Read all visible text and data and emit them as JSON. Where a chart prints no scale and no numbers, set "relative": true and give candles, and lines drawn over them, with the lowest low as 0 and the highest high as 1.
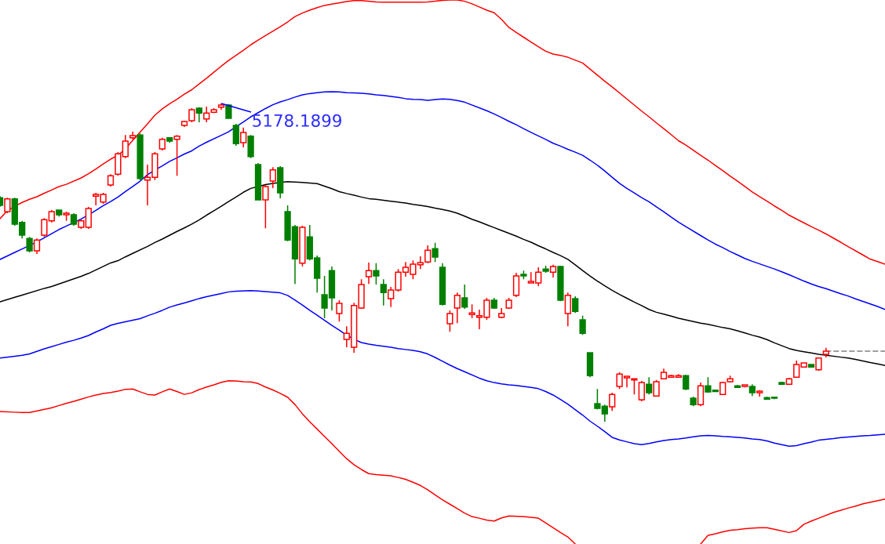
{
  "chart_data": {
    "type": "candlestick",
    "relative": true,
    "categories": [
      null,
      null,
      null,
      null,
      null,
      null,
      null,
      null,
      null,
      null,
      null,
      null,
      null,
      null,
      null,
      null,
      null,
      null,
      null,
      null,
      null,
      null,
      null,
      null,
      null,
      null,
      null,
      null,
      null,
      null,
      null,
      null,
      null,
      null,
      null,
      null,
      null,
      null,
      null,
      null,
      null,
      null,
      null,
      null,
      null,
      null,
      null,
      null,
      null,
      null,
      null,
      null,
      null,
      null,
      null,
      null,
      null,
      null,
      null,
      null,
      null,
      null,
      null,
      null,
      null,
      null,
      null,
      null,
      null,
      null,
      null,
      null,
      null,
      null,
      null,
      null,
      null,
      null,
      null,
      null,
      null,
      null,
      null,
      null,
      null,
      null,
      null,
      null,
      null,
      null,
      null,
      null,
      null,
      null,
      null,
      null,
      null,
      null,
      null,
      null,
      null,
      null,
      null,
      null,
      null,
      null,
      null,
      null,
      null,
      null,
      null,
      null,
      null,
      null,
      null,
      null,
      null,
      null,
      null,
      null,
      null
    ],
    "ohlc": [
      [
        0.704,
        0.709,
        0.675,
        0.68
      ],
      [
        0.66,
        0.704,
        0.655,
        0.7
      ],
      [
        0.7,
        0.704,
        0.616,
        0.621
      ],
      [
        0.626,
        0.631,
        0.576,
        0.586
      ],
      [
        0.576,
        0.581,
        0.532,
        0.537
      ],
      [
        0.537,
        0.576,
        0.527,
        0.571
      ],
      [
        0.586,
        0.64,
        0.581,
        0.635
      ],
      [
        0.631,
        0.665,
        0.626,
        0.66
      ],
      [
        0.665,
        0.667,
        0.645,
        0.65
      ],
      [
        0.65,
        0.66,
        0.631,
        0.655
      ],
      [
        0.65,
        0.655,
        0.616,
        0.621
      ],
      [
        0.611,
        0.635,
        0.606,
        0.631
      ],
      [
        0.611,
        0.675,
        0.606,
        0.67
      ],
      [
        0.709,
        0.719,
        0.68,
        0.714
      ],
      [
        0.69,
        0.719,
        0.685,
        0.714
      ],
      [
        0.744,
        0.778,
        0.739,
        0.773
      ],
      [
        0.778,
        0.847,
        0.773,
        0.842
      ],
      [
        0.833,
        0.901,
        0.828,
        0.882
      ],
      [
        0.892,
        0.911,
        0.887,
        0.899
      ],
      [
        0.901,
        0.906,
        0.759,
        0.764
      ],
      [
        0.759,
        0.808,
        0.68,
        0.768
      ],
      [
        0.768,
        0.847,
        0.759,
        0.842
      ],
      [
        0.857,
        0.892,
        0.852,
        0.887
      ],
      [
        0.892,
        0.894,
        0.877,
        0.882
      ],
      [
        0.887,
        0.901,
        0.773,
        0.897
      ],
      [
        0.931,
        0.946,
        0.926,
        0.943
      ],
      [
        0.946,
        0.985,
        0.941,
        0.98
      ],
      [
        0.985,
        0.988,
        0.941,
        0.97
      ],
      [
        0.951,
        0.99,
        0.941,
        0.97
      ],
      [
        0.972,
        0.985,
        0.97,
        0.98
      ],
      [
        0.988,
        1,
        0.98,
        0.995
      ],
      [
        0.995,
        0.998,
        0.951,
        0.953
      ],
      [
        0.931,
        0.936,
        0.867,
        0.874
      ],
      [
        0.877,
        0.924,
        0.862,
        0.909
      ],
      [
        0.897,
        0.901,
        0.828,
        0.833
      ],
      [
        0.808,
        0.813,
        0.695,
        0.697
      ],
      [
        0.697,
        0.744,
        0.608,
        0.739
      ],
      [
        0.756,
        0.8,
        0.734,
        0.791
      ],
      [
        0.798,
        0.803,
        0.702,
        0.719
      ],
      [
        0.66,
        0.68,
        0.567,
        0.571
      ],
      [
        0.613,
        0.618,
        0.433,
        0.512
      ],
      [
        0.498,
        0.616,
        0.488,
        0.611
      ],
      [
        0.581,
        0.618,
        0.507,
        0.512
      ],
      [
        0.515,
        0.522,
        0.406,
        0.451
      ],
      [
        0.399,
        0.458,
        0.325,
        0.357
      ],
      [
        0.475,
        0.488,
        0.35,
        0.389
      ],
      [
        0.34,
        0.382,
        0.315,
        0.372
      ],
      [
        0.259,
        0.3,
        0.234,
        0.278
      ],
      [
        0.234,
        0.374,
        0.217,
        0.365
      ],
      [
        0.357,
        0.448,
        0.355,
        0.431
      ],
      [
        0.456,
        0.5,
        0.433,
        0.475
      ],
      [
        0.475,
        0.498,
        0.431,
        0.458
      ],
      [
        0.431,
        0.448,
        0.365,
        0.406
      ],
      [
        0.387,
        0.424,
        0.36,
        0.414
      ],
      [
        0.414,
        0.48,
        0.409,
        0.47
      ],
      [
        0.47,
        0.502,
        0.456,
        0.485
      ],
      [
        0.463,
        0.507,
        0.448,
        0.495
      ],
      [
        0.493,
        0.52,
        0.48,
        0.5
      ],
      [
        0.502,
        0.554,
        0.498,
        0.539
      ],
      [
        0.544,
        0.562,
        0.502,
        0.517
      ],
      [
        0.485,
        0.498,
        0.365,
        0.369
      ],
      [
        0.308,
        0.35,
        0.283,
        0.34
      ],
      [
        0.357,
        0.406,
        0.31,
        0.397
      ],
      [
        0.389,
        0.431,
        0.355,
        0.36
      ],
      [
        0.337,
        0.369,
        0.325,
        0.342
      ],
      [
        0.328,
        0.352,
        0.291,
        0.333
      ],
      [
        0.328,
        0.389,
        0.32,
        0.382
      ],
      [
        0.382,
        0.389,
        0.355,
        0.357
      ],
      [
        0.328,
        0.357,
        0.325,
        0.34
      ],
      [
        0.357,
        0.389,
        0.355,
        0.382
      ],
      [
        0.397,
        0.468,
        0.392,
        0.458
      ],
      [
        0.463,
        0.475,
        0.448,
        0.458
      ],
      [
        0.436,
        0.47,
        0.436,
        0.441
      ],
      [
        0.436,
        0.485,
        0.426,
        0.47
      ],
      [
        0.48,
        0.49,
        0.468,
        0.473
      ],
      [
        0.47,
        0.493,
        0.453,
        0.488
      ],
      [
        0.488,
        0.49,
        0.379,
        0.382
      ],
      [
        0.34,
        0.406,
        0.3,
        0.397
      ],
      [
        0.387,
        0.394,
        0.342,
        0.347
      ],
      [
        0.32,
        0.333,
        0.273,
        0.278
      ],
      [
        0.217,
        0.219,
        0.14,
        0.145
      ],
      [
        0.057,
        0.103,
        0.039,
        0.042
      ],
      [
        0.049,
        0.054,
        0,
        0.025
      ],
      [
        0.047,
        0.091,
        0.034,
        0.086
      ],
      [
        0.111,
        0.155,
        0.103,
        0.15
      ],
      [
        0.138,
        0.145,
        0.108,
        0.143
      ],
      [
        0.131,
        0.135,
        0.086,
        0.135
      ],
      [
        0.069,
        0.128,
        0.064,
        0.123
      ],
      [
        0.118,
        0.14,
        0.086,
        0.091
      ],
      [
        0.081,
        0.131,
        0.079,
        0.126
      ],
      [
        0.135,
        0.167,
        0.133,
        0.155
      ],
      [
        0.14,
        0.148,
        0.138,
        0.145
      ],
      [
        0.14,
        0.15,
        0.138,
        0.145
      ],
      [
        0.145,
        0.148,
        0.099,
        0.103
      ],
      [
        0.074,
        0.079,
        0.049,
        0.054
      ],
      [
        0.054,
        0.123,
        0.049,
        0.113
      ],
      [
        0.113,
        0.14,
        0.091,
        0.094
      ],
      [
        0.099,
        0.101,
        0.094,
        0.095
      ],
      [
        0.086,
        0.126,
        0.084,
        0.123
      ],
      [
        0.126,
        0.145,
        0.123,
        0.135
      ],
      [
        0.113,
        0.116,
        0.106,
        0.108
      ],
      [
        0.111,
        0.118,
        0.108,
        0.116
      ],
      [
        0.111,
        0.118,
        0.081,
        0.091
      ],
      [
        0.091,
        0.099,
        0.079,
        0.096
      ],
      [
        0.076,
        0.079,
        0.069,
        0.071
      ],
      [
        0.077,
        0.079,
        0.071,
        0.074
      ],
      [
        0.123,
        0.126,
        0.116,
        0.118
      ],
      [
        0.118,
        0.138,
        0.116,
        0.135
      ],
      [
        0.14,
        0.192,
        0.138,
        0.18
      ],
      [
        0.172,
        0.187,
        0.17,
        0.185
      ],
      [
        0.18,
        0.182,
        0.17,
        0.172
      ],
      [
        0.163,
        0.202,
        0.16,
        0.2
      ],
      [
        0.212,
        0.232,
        0.202,
        0.222
      ],
      null,
      null,
      null,
      null,
      null,
      null,
      null,
      null
    ],
    "colors": [
      "#008000",
      "#ff0000",
      "#008000",
      "#008000",
      "#008000",
      "#ff0000",
      "#ff0000",
      "#ff0000",
      "#008000",
      "#ff0000",
      "#008000",
      "#ff0000",
      "#ff0000",
      "#ff0000",
      "#ff0000",
      "#ff0000",
      "#ff0000",
      "#ff0000",
      "#ff0000",
      "#008000",
      "#ff0000",
      "#ff0000",
      "#ff0000",
      "#008000",
      "#ff0000",
      "#ff0000",
      "#ff0000",
      "#008000",
      "#ff0000",
      "#ff0000",
      "#ff0000",
      "#008000",
      "#008000",
      "#ff0000",
      "#008000",
      "#008000",
      "#ff0000",
      "#ff0000",
      "#008000",
      "#008000",
      "#008000",
      "#ff0000",
      "#008000",
      "#008000",
      "#008000",
      "#008000",
      "#ff0000",
      "#ff0000",
      "#ff0000",
      "#ff0000",
      "#ff0000",
      "#008000",
      "#008000",
      "#ff0000",
      "#ff0000",
      "#ff0000",
      "#ff0000",
      "#ff0000",
      "#ff0000",
      "#008000",
      "#008000",
      "#ff0000",
      "#ff0000",
      "#008000",
      "#ff0000",
      "#ff0000",
      "#ff0000",
      "#008000",
      "#ff0000",
      "#ff0000",
      "#ff0000",
      "#008000",
      "#ff0000",
      "#ff0000",
      "#008000",
      "#ff0000",
      "#008000",
      "#ff0000",
      "#008000",
      "#008000",
      "#008000",
      "#008000",
      "#008000",
      "#ff0000",
      "#ff0000",
      "#ff0000",
      "#ff0000",
      "#ff0000",
      "#008000",
      "#ff0000",
      "#ff0000",
      "#ff0000",
      "#ff0000",
      "#008000",
      "#008000",
      "#ff0000",
      "#008000",
      "#008000",
      "#ff0000",
      "#ff0000",
      "#008000",
      "#ff0000",
      "#008000",
      "#ff0000",
      "#008000",
      "#008000",
      "#008000",
      "#ff0000",
      "#ff0000",
      "#ff0000",
      "#008000",
      "#ff0000",
      "#ff0000",
      null,
      null,
      null,
      null,
      null,
      null,
      null,
      null
    ],
    "series": [
      {
        "type": "line",
        "color": "#ff0000",
        "values": [
          0.638,
          0.663,
          0.677,
          0.689,
          0.699,
          0.707,
          0.718,
          0.728,
          0.739,
          0.746,
          0.756,
          0.766,
          0.779,
          0.794,
          0.81,
          0.825,
          0.837,
          0.857,
          0.884,
          0.91,
          0.936,
          0.963,
          0.983,
          0.999,
          1.013,
          1.029,
          1.043,
          1.061,
          1.079,
          1.098,
          1.117,
          1.135,
          1.151,
          1.167,
          1.184,
          1.199,
          1.213,
          1.227,
          1.241,
          1.256,
          1.273,
          1.284,
          1.293,
          1.301,
          1.308,
          1.312,
          1.316,
          1.32,
          1.323,
          1.323,
          1.321,
          1.319,
          1.318,
          1.318,
          1.318,
          1.318,
          1.318,
          1.318,
          1.319,
          1.321,
          1.324,
          1.325,
          1.325,
          1.321,
          1.313,
          1.303,
          1.293,
          1.285,
          1.264,
          1.239,
          1.223,
          1.208,
          1.193,
          1.178,
          1.164,
          1.155,
          1.151,
          1.145,
          1.136,
          1.127,
          1.108,
          1.089,
          1.07,
          1.052,
          1.033,
          1.014,
          0.995,
          0.976,
          0.958,
          0.939,
          0.921,
          0.902,
          0.883,
          0.869,
          0.853,
          0.837,
          0.822,
          0.805,
          0.789,
          0.772,
          0.756,
          0.739,
          0.722,
          0.707,
          0.693,
          0.678,
          0.664,
          0.649,
          0.637,
          0.625,
          0.613,
          0.602,
          0.59,
          0.577,
          0.564,
          0.55,
          0.537,
          0.524,
          0.511,
          0.503,
          0.495
        ]
      },
      {
        "type": "line",
        "color": "#0000ff",
        "values": [
          0.51,
          0.521,
          0.532,
          0.543,
          0.554,
          0.565,
          0.578,
          0.591,
          0.604,
          0.615,
          0.626,
          0.637,
          0.65,
          0.664,
          0.679,
          0.692,
          0.706,
          0.723,
          0.739,
          0.756,
          0.776,
          0.791,
          0.804,
          0.818,
          0.829,
          0.841,
          0.851,
          0.866,
          0.878,
          0.889,
          0.9,
          0.911,
          0.927,
          0.942,
          0.958,
          0.971,
          0.984,
          0.996,
          1.005,
          1.012,
          1.02,
          1.027,
          1.031,
          1.034,
          1.036,
          1.037,
          1.036,
          1.034,
          1.033,
          1.032,
          1.03,
          1.027,
          1.025,
          1.022,
          1.019,
          1.015,
          1.013,
          1.012,
          1.01,
          1.012,
          1.014,
          1.013,
          1.009,
          1.004,
          0.995,
          0.986,
          0.977,
          0.967,
          0.956,
          0.944,
          0.933,
          0.921,
          0.909,
          0.898,
          0.887,
          0.875,
          0.866,
          0.856,
          0.847,
          0.837,
          0.822,
          0.806,
          0.788,
          0.768,
          0.749,
          0.733,
          0.719,
          0.704,
          0.691,
          0.675,
          0.66,
          0.643,
          0.627,
          0.613,
          0.599,
          0.585,
          0.571,
          0.558,
          0.547,
          0.535,
          0.524,
          0.513,
          0.504,
          0.496,
          0.488,
          0.48,
          0.471,
          0.462,
          0.452,
          0.442,
          0.433,
          0.425,
          0.418,
          0.41,
          0.402,
          0.395,
          0.386,
          0.378,
          0.37,
          0.362,
          0.353
        ]
      },
      {
        "type": "line",
        "color": "#000000",
        "values": [
          0.377,
          0.384,
          0.391,
          0.398,
          0.405,
          0.412,
          0.419,
          0.425,
          0.433,
          0.441,
          0.449,
          0.457,
          0.466,
          0.477,
          0.488,
          0.499,
          0.506,
          0.518,
          0.529,
          0.54,
          0.551,
          0.563,
          0.574,
          0.586,
          0.598,
          0.609,
          0.621,
          0.634,
          0.649,
          0.663,
          0.677,
          0.692,
          0.706,
          0.721,
          0.733,
          0.739,
          0.745,
          0.749,
          0.752,
          0.754,
          0.753,
          0.752,
          0.75,
          0.748,
          0.74,
          0.732,
          0.723,
          0.717,
          0.712,
          0.706,
          0.701,
          0.699,
          0.696,
          0.693,
          0.69,
          0.687,
          0.683,
          0.68,
          0.676,
          0.671,
          0.667,
          0.662,
          0.655,
          0.646,
          0.636,
          0.628,
          0.619,
          0.61,
          0.601,
          0.592,
          0.583,
          0.573,
          0.564,
          0.553,
          0.543,
          0.532,
          0.522,
          0.51,
          0.493,
          0.475,
          0.458,
          0.442,
          0.427,
          0.413,
          0.4,
          0.388,
          0.376,
          0.365,
          0.353,
          0.344,
          0.338,
          0.332,
          0.325,
          0.32,
          0.315,
          0.31,
          0.306,
          0.301,
          0.296,
          0.292,
          0.286,
          0.279,
          0.272,
          0.266,
          0.258,
          0.248,
          0.239,
          0.23,
          0.224,
          0.22,
          0.216,
          0.212,
          0.209,
          0.206,
          0.203,
          0.2,
          0.196,
          0.191,
          0.186,
          0.182,
          0.177
        ]
      },
      {
        "type": "line",
        "color": "#0000ff",
        "values": [
          0.2,
          0.203,
          0.206,
          0.209,
          0.213,
          0.221,
          0.229,
          0.236,
          0.243,
          0.25,
          0.256,
          0.263,
          0.271,
          0.282,
          0.292,
          0.303,
          0.309,
          0.314,
          0.319,
          0.324,
          0.333,
          0.341,
          0.35,
          0.36,
          0.367,
          0.373,
          0.38,
          0.387,
          0.393,
          0.398,
          0.403,
          0.408,
          0.41,
          0.411,
          0.412,
          0.411,
          0.409,
          0.407,
          0.405,
          0.397,
          0.382,
          0.367,
          0.35,
          0.335,
          0.319,
          0.303,
          0.288,
          0.272,
          0.259,
          0.249,
          0.244,
          0.24,
          0.237,
          0.234,
          0.23,
          0.227,
          0.224,
          0.22,
          0.213,
          0.202,
          0.19,
          0.178,
          0.167,
          0.157,
          0.147,
          0.137,
          0.129,
          0.123,
          0.119,
          0.116,
          0.114,
          0.111,
          0.108,
          0.104,
          0.095,
          0.084,
          0.07,
          0.055,
          0.038,
          0.021,
          0.002,
          -0.014,
          -0.031,
          -0.049,
          -0.057,
          -0.063,
          -0.069,
          -0.072,
          -0.068,
          -0.063,
          -0.059,
          -0.056,
          -0.054,
          -0.051,
          -0.047,
          -0.044,
          -0.043,
          -0.044,
          -0.046,
          -0.047,
          -0.049,
          -0.051,
          -0.054,
          -0.056,
          -0.06,
          -0.067,
          -0.072,
          -0.077,
          -0.075,
          -0.069,
          -0.064,
          -0.058,
          -0.055,
          -0.053,
          -0.05,
          -0.048,
          -0.046,
          -0.044,
          -0.043,
          -0.041,
          -0.039
        ]
      },
      {
        "type": "line",
        "color": "#ff0000",
        "values": [
          0.032,
          0.031,
          0.03,
          0.029,
          0.029,
          0.034,
          0.039,
          0.044,
          0.051,
          0.058,
          0.064,
          0.071,
          0.078,
          0.084,
          0.089,
          0.092,
          0.096,
          0.102,
          0.103,
          0.094,
          0.086,
          0.084,
          0.094,
          0.103,
          0.095,
          0.086,
          0.091,
          0.101,
          0.109,
          0.116,
          0.124,
          0.129,
          0.128,
          0.126,
          0.125,
          0.12,
          0.109,
          0.1,
          0.089,
          0.077,
          0.054,
          0.025,
          0,
          -0.023,
          -0.046,
          -0.069,
          -0.093,
          -0.116,
          -0.135,
          -0.15,
          -0.163,
          -0.166,
          -0.168,
          -0.17,
          -0.175,
          -0.181,
          -0.19,
          -0.2,
          -0.214,
          -0.23,
          -0.245,
          -0.259,
          -0.273,
          -0.287,
          -0.298,
          -0.303,
          -0.309,
          -0.312,
          -0.302,
          -0.296,
          -0.297,
          -0.298,
          -0.3,
          -0.303,
          -0.318,
          -0.333,
          -0.348,
          -0.362,
          -0.384,
          null,
          null,
          null,
          null,
          null,
          null,
          null,
          null,
          null,
          null,
          null,
          null,
          null,
          null,
          null,
          null,
          -0.384,
          -0.357,
          -0.352,
          -0.346,
          -0.341,
          -0.339,
          -0.336,
          -0.334,
          -0.333,
          -0.333,
          -0.338,
          -0.343,
          -0.348,
          -0.342,
          -0.322,
          -0.312,
          -0.303,
          -0.294,
          -0.285,
          -0.278,
          -0.271,
          -0.265,
          -0.258,
          -0.253,
          -0.248,
          -0.243
        ]
      },
      {
        "type": "line",
        "color": "#808080",
        "line_style": "dashed",
        "values": [
          null,
          null,
          null,
          null,
          null,
          null,
          null,
          null,
          null,
          null,
          null,
          null,
          null,
          null,
          null,
          null,
          null,
          null,
          null,
          null,
          null,
          null,
          null,
          null,
          null,
          null,
          null,
          null,
          null,
          null,
          null,
          null,
          null,
          null,
          null,
          null,
          null,
          null,
          null,
          null,
          null,
          null,
          null,
          null,
          null,
          null,
          null,
          null,
          null,
          null,
          null,
          null,
          null,
          null,
          null,
          null,
          null,
          null,
          null,
          null,
          null,
          null,
          null,
          null,
          null,
          null,
          null,
          null,
          null,
          null,
          null,
          null,
          null,
          null,
          null,
          null,
          null,
          null,
          null,
          null,
          null,
          null,
          null,
          null,
          null,
          null,
          null,
          null,
          null,
          null,
          null,
          null,
          null,
          null,
          null,
          null,
          null,
          null,
          null,
          null,
          null,
          null,
          null,
          null,
          null,
          null,
          null,
          null,
          null,
          null,
          null,
          null,
          0.222,
          0.222,
          0.222,
          0.222,
          0.222,
          0.222,
          0.222,
          0.222,
          0.222
        ]
      }
    ],
    "annotations": [
      {
        "text": "5178.1899",
        "y": 1
      }
    ]
  }
}
